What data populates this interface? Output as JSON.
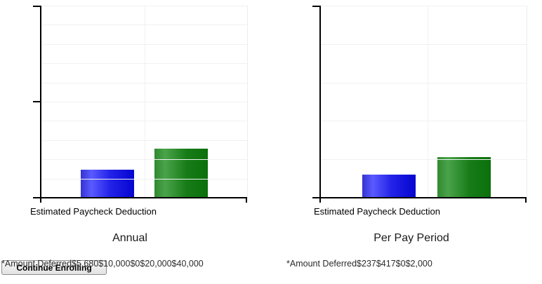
{
  "chart_data": [
    {
      "type": "bar",
      "title": "Annual",
      "categories": [
        "Estimated Paycheck Deduction"
      ],
      "series_label": "*Amount Deferred",
      "series": [
        {
          "name": "blue",
          "values": [
            5680
          ]
        },
        {
          "name": "green",
          "values": [
            10000
          ]
        }
      ],
      "ylim": [
        0,
        40000
      ],
      "y_ticks": [
        "$0",
        "$20,000",
        "$40,000"
      ],
      "y_tick_labels_shown": false,
      "grid": true,
      "grid_divisions": 10,
      "legend_position": "none",
      "footer_text": "*Amount Deferred$5,680$10,000$0$20,000$40,000"
    },
    {
      "type": "bar",
      "title": "Per Pay Period",
      "categories": [
        "Estimated Paycheck Deduction"
      ],
      "series_label": "*Amount Deferred",
      "series": [
        {
          "name": "blue",
          "values": [
            237
          ]
        },
        {
          "name": "green",
          "values": [
            417
          ]
        }
      ],
      "ylim": [
        0,
        2000
      ],
      "y_ticks": [
        "$0",
        "$2,000"
      ],
      "y_tick_labels_shown": false,
      "grid": true,
      "grid_divisions": 5,
      "legend_position": "none",
      "footer_text": "*Amount Deferred$237$417$0$2,000"
    }
  ],
  "button": {
    "label": "Continue Enrolling"
  },
  "colors": {
    "bar_blue": "#0505d0",
    "bar_green": "#177c17",
    "axis": "#000000",
    "gridline": "#f1f1f1",
    "plot_border": "#ededed",
    "text": "#000000"
  }
}
